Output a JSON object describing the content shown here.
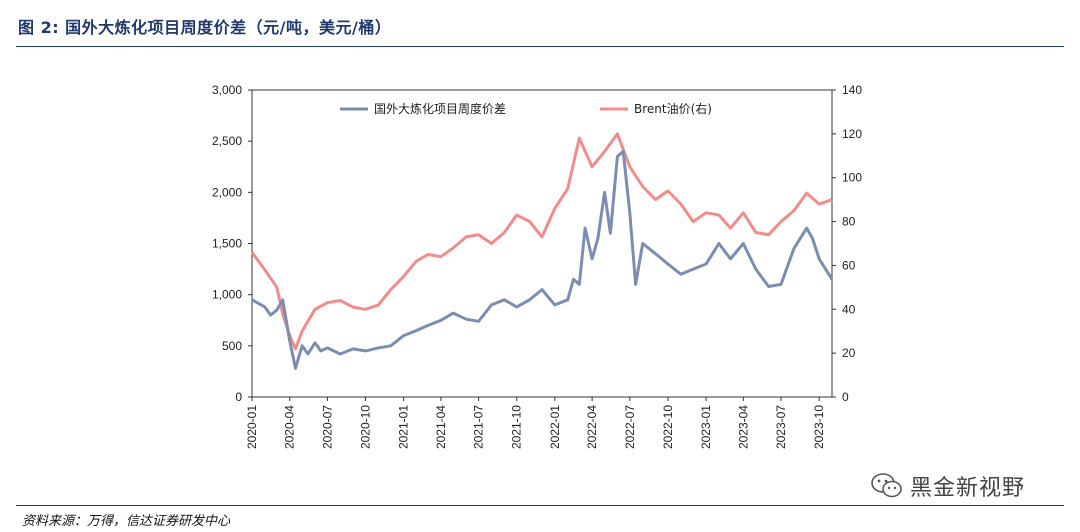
{
  "figure": {
    "title": "图 2:  国外大炼化项目周度价差（元/吨，美元/桶）",
    "source": "资料来源：万得，信达证券研发中心",
    "watermark": "黑金新视野",
    "watermark_icon": "wechat-icon"
  },
  "chart_data": {
    "type": "line",
    "colors": {
      "spread": "#7b8db0",
      "brent": "#f28c8c"
    },
    "y_left": {
      "min": 0,
      "max": 3000,
      "ticks": [
        0,
        500,
        1000,
        1500,
        2000,
        2500,
        3000
      ],
      "tick_labels": [
        "0",
        "500",
        "1,000",
        "1,500",
        "2,000",
        "2,500",
        "3,000"
      ]
    },
    "y_right": {
      "min": 0,
      "max": 140,
      "ticks": [
        0,
        20,
        40,
        60,
        80,
        100,
        120,
        140
      ],
      "tick_labels": [
        "0",
        "20",
        "40",
        "60",
        "80",
        "100",
        "120",
        "140"
      ]
    },
    "x_range": [
      "2020-01",
      "2023-11"
    ],
    "x_ticks": [
      "2020-01",
      "2020-04",
      "2020-07",
      "2020-10",
      "2021-01",
      "2021-04",
      "2021-07",
      "2021-10",
      "2022-01",
      "2022-04",
      "2022-07",
      "2022-10",
      "2023-01",
      "2023-04",
      "2023-07",
      "2023-10"
    ],
    "grid": false,
    "legend": "top",
    "series": [
      {
        "name": "国外大炼化项目周度价差",
        "axis": "left",
        "points": [
          [
            "2020-01",
            950
          ],
          [
            "2020-02",
            880
          ],
          [
            "2020-02-15",
            800
          ],
          [
            "2020-03",
            850
          ],
          [
            "2020-03-15",
            950
          ],
          [
            "2020-04",
            550
          ],
          [
            "2020-04-15",
            280
          ],
          [
            "2020-05",
            500
          ],
          [
            "2020-05-15",
            420
          ],
          [
            "2020-06",
            530
          ],
          [
            "2020-06-15",
            450
          ],
          [
            "2020-07",
            480
          ],
          [
            "2020-08",
            420
          ],
          [
            "2020-09",
            470
          ],
          [
            "2020-10",
            450
          ],
          [
            "2020-11",
            480
          ],
          [
            "2020-12",
            500
          ],
          [
            "2021-01",
            600
          ],
          [
            "2021-02",
            650
          ],
          [
            "2021-03",
            700
          ],
          [
            "2021-04",
            750
          ],
          [
            "2021-05",
            820
          ],
          [
            "2021-06",
            760
          ],
          [
            "2021-07",
            740
          ],
          [
            "2021-08",
            900
          ],
          [
            "2021-09",
            950
          ],
          [
            "2021-10",
            880
          ],
          [
            "2021-11",
            950
          ],
          [
            "2021-12",
            1050
          ],
          [
            "2022-01",
            900
          ],
          [
            "2022-02",
            950
          ],
          [
            "2022-02-15",
            1150
          ],
          [
            "2022-03",
            1100
          ],
          [
            "2022-03-15",
            1650
          ],
          [
            "2022-04",
            1350
          ],
          [
            "2022-04-15",
            1550
          ],
          [
            "2022-05",
            2000
          ],
          [
            "2022-05-15",
            1600
          ],
          [
            "2022-06",
            2350
          ],
          [
            "2022-06-15",
            2400
          ],
          [
            "2022-07",
            1800
          ],
          [
            "2022-07-15",
            1100
          ],
          [
            "2022-08",
            1500
          ],
          [
            "2022-09",
            1400
          ],
          [
            "2022-10",
            1300
          ],
          [
            "2022-11",
            1200
          ],
          [
            "2022-12",
            1250
          ],
          [
            "2023-01",
            1300
          ],
          [
            "2023-02",
            1500
          ],
          [
            "2023-03",
            1350
          ],
          [
            "2023-04",
            1500
          ],
          [
            "2023-05",
            1250
          ],
          [
            "2023-06",
            1080
          ],
          [
            "2023-07",
            1100
          ],
          [
            "2023-08",
            1450
          ],
          [
            "2023-09",
            1650
          ],
          [
            "2023-09-15",
            1550
          ],
          [
            "2023-10",
            1350
          ],
          [
            "2023-11",
            1150
          ]
        ]
      },
      {
        "name": "Brent油价(右)",
        "axis": "right",
        "points": [
          [
            "2020-01",
            66
          ],
          [
            "2020-02",
            58
          ],
          [
            "2020-03",
            50
          ],
          [
            "2020-03-15",
            38
          ],
          [
            "2020-04",
            28
          ],
          [
            "2020-04-15",
            22
          ],
          [
            "2020-05",
            30
          ],
          [
            "2020-06",
            40
          ],
          [
            "2020-07",
            43
          ],
          [
            "2020-08",
            44
          ],
          [
            "2020-09",
            41
          ],
          [
            "2020-10",
            40
          ],
          [
            "2020-11",
            42
          ],
          [
            "2020-12",
            49
          ],
          [
            "2021-01",
            55
          ],
          [
            "2021-02",
            62
          ],
          [
            "2021-03",
            65
          ],
          [
            "2021-04",
            64
          ],
          [
            "2021-05",
            68
          ],
          [
            "2021-06",
            73
          ],
          [
            "2021-07",
            74
          ],
          [
            "2021-08",
            70
          ],
          [
            "2021-09",
            75
          ],
          [
            "2021-10",
            83
          ],
          [
            "2021-11",
            80
          ],
          [
            "2021-12",
            73
          ],
          [
            "2022-01",
            86
          ],
          [
            "2022-02",
            95
          ],
          [
            "2022-03",
            118
          ],
          [
            "2022-04",
            105
          ],
          [
            "2022-05",
            112
          ],
          [
            "2022-06",
            120
          ],
          [
            "2022-07",
            105
          ],
          [
            "2022-08",
            96
          ],
          [
            "2022-09",
            90
          ],
          [
            "2022-10",
            94
          ],
          [
            "2022-11",
            88
          ],
          [
            "2022-12",
            80
          ],
          [
            "2023-01",
            84
          ],
          [
            "2023-02",
            83
          ],
          [
            "2023-03",
            77
          ],
          [
            "2023-04",
            84
          ],
          [
            "2023-05",
            75
          ],
          [
            "2023-06",
            74
          ],
          [
            "2023-07",
            80
          ],
          [
            "2023-08",
            85
          ],
          [
            "2023-09",
            93
          ],
          [
            "2023-10",
            88
          ],
          [
            "2023-11",
            90
          ]
        ]
      }
    ]
  }
}
